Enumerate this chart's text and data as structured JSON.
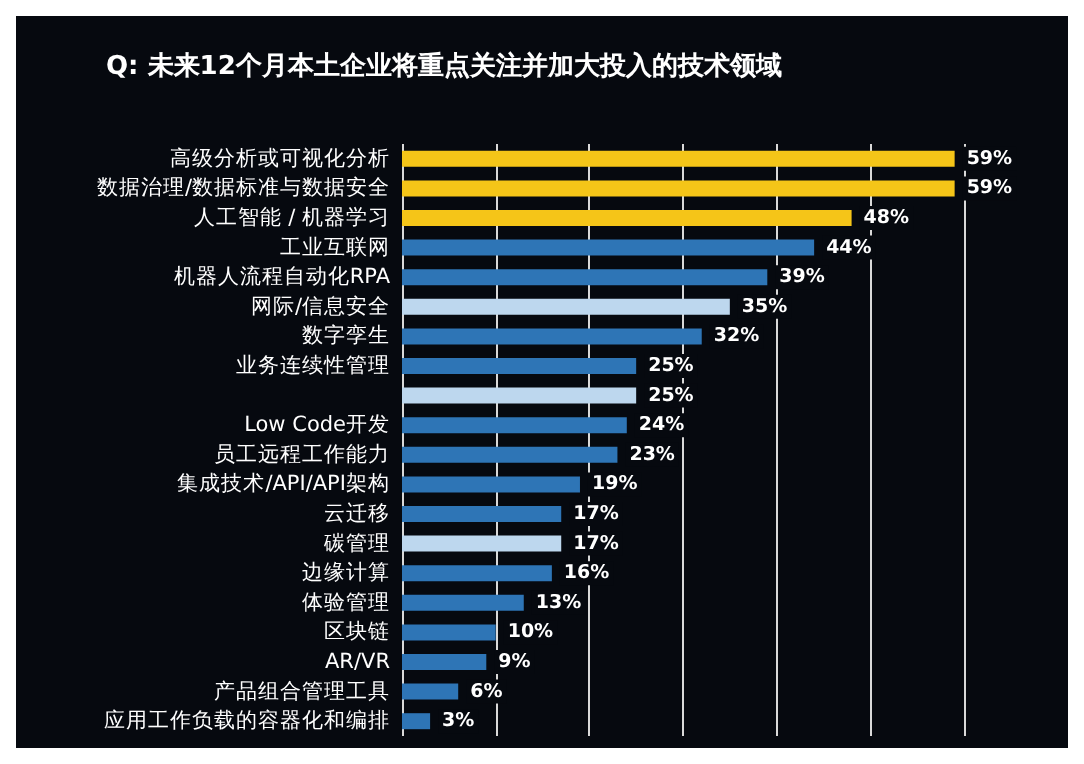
{
  "chart_data": {
    "type": "bar",
    "orientation": "horizontal",
    "title": "Q: 未来12个月本土企业将重点关注并加大投入的技术领域",
    "categories": [
      "高级分析或可视化分析",
      "数据治理/数据标准与数据安全",
      "人工智能 / 机器学习",
      "工业互联网",
      "机器人流程自动化RPA",
      "网际/信息安全",
      "数字孪生",
      "业务连续性管理",
      null,
      "Low Code开发",
      "员工远程工作能力",
      "集成技术/API/API架构",
      "云迁移",
      "碳管理",
      "边缘计算",
      "体验管理",
      "区块链",
      "AR/VR",
      "产品组合管理工具",
      "应用工作负载的容器化和编排"
    ],
    "values": [
      59,
      59,
      48,
      44,
      39,
      35,
      32,
      25,
      25,
      24,
      23,
      19,
      17,
      17,
      16,
      13,
      10,
      9,
      6,
      3
    ],
    "value_labels": [
      "59%",
      "59%",
      "48%",
      "44%",
      "39%",
      "35%",
      "32%",
      "25%",
      "25%",
      "24%",
      "23%",
      "19%",
      "17%",
      "17%",
      "16%",
      "13%",
      "10%",
      "9%",
      "6%",
      "3%"
    ],
    "colors": [
      "#f5c518",
      "#f5c518",
      "#f5c518",
      "#2e75b6",
      "#2e75b6",
      "#bdd7ee",
      "#2e75b6",
      "#2e75b6",
      "#bdd7ee",
      "#2e75b6",
      "#2e75b6",
      "#2e75b6",
      "#2e75b6",
      "#bdd7ee",
      "#2e75b6",
      "#2e75b6",
      "#2e75b6",
      "#2e75b6",
      "#2e75b6",
      "#2e75b6"
    ],
    "xlim": [
      0,
      60
    ],
    "xticks": [
      {
        "value": 0,
        "label": null
      },
      {
        "value": 10,
        "label": null
      },
      {
        "value": 20,
        "label": null
      },
      {
        "value": 30,
        "label": null
      },
      {
        "value": 40,
        "label": null
      },
      {
        "value": 50,
        "label": null
      },
      {
        "value": 60,
        "label": null
      }
    ],
    "grid": "x",
    "tick_labels": "y"
  }
}
